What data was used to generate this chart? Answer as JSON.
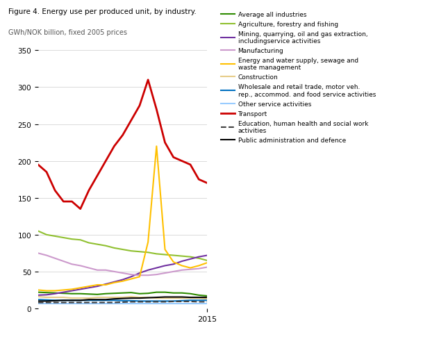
{
  "years": [
    1995,
    1996,
    1997,
    1998,
    1999,
    2000,
    2001,
    2002,
    2003,
    2004,
    2005,
    2006,
    2007,
    2008,
    2009,
    2010,
    2011,
    2012,
    2013,
    2014,
    2015
  ],
  "series": [
    {
      "name": "Average all industries",
      "color": "#2e8b00",
      "lw": 1.5,
      "ls": "-",
      "values": [
        22,
        21.5,
        21,
        20.5,
        20,
        20,
        19.5,
        19,
        20,
        20.5,
        21,
        21.5,
        20,
        20.5,
        22,
        22,
        21,
        21,
        20,
        18,
        17
      ]
    },
    {
      "name": "Agriculture, forestry and fishing",
      "color": "#90c030",
      "lw": 1.5,
      "ls": "-",
      "values": [
        105,
        100,
        98,
        96,
        94,
        93,
        89,
        87,
        85,
        82,
        80,
        78,
        77,
        76,
        74,
        73,
        72,
        71,
        70,
        68,
        65
      ]
    },
    {
      "name": "Mining, quarrying, oil and gas extraction,\nincludingservice activities",
      "color": "#7030a0",
      "lw": 1.5,
      "ls": "-",
      "values": [
        18,
        18.5,
        20,
        22,
        24,
        26,
        28,
        30,
        33,
        36,
        39,
        43,
        48,
        52,
        55,
        58,
        60,
        64,
        67,
        70,
        72
      ]
    },
    {
      "name": "Manufacturing",
      "color": "#cc99cc",
      "lw": 1.5,
      "ls": "-",
      "values": [
        75,
        72,
        68,
        64,
        60,
        58,
        55,
        52,
        52,
        50,
        48,
        46,
        45,
        45,
        46,
        48,
        50,
        52,
        53,
        54,
        56
      ]
    },
    {
      "name": "Energy and water supply, sewage and\nwaste management",
      "color": "#ffc000",
      "lw": 1.5,
      "ls": "-",
      "values": [
        25,
        24,
        24,
        25,
        26,
        28,
        30,
        32,
        32,
        35,
        37,
        40,
        43,
        90,
        220,
        80,
        63,
        58,
        55,
        58,
        62
      ]
    },
    {
      "name": "Construction",
      "color": "#e6cc88",
      "lw": 1.5,
      "ls": "-",
      "values": [
        16,
        15,
        15,
        15,
        14,
        14,
        14,
        15,
        15,
        15,
        15,
        16,
        15,
        15,
        14,
        14,
        14,
        14,
        14,
        14,
        13
      ]
    },
    {
      "name": "Wholesale and retail trade, motor veh.\nrep., accommod. and food service activities",
      "color": "#0070c0",
      "lw": 1.5,
      "ls": "-",
      "values": [
        12,
        11.5,
        11,
        11,
        11,
        11,
        11,
        11,
        11,
        11,
        10.5,
        10.5,
        10,
        10,
        10,
        10,
        10,
        10.5,
        11,
        11,
        11
      ]
    },
    {
      "name": "Other service activities",
      "color": "#99ccff",
      "lw": 1.5,
      "ls": "-",
      "values": [
        7,
        7,
        7,
        7,
        7,
        7,
        7,
        7,
        7,
        7,
        7,
        7,
        7,
        7,
        7,
        7,
        7,
        7,
        7,
        7,
        7
      ]
    },
    {
      "name": "Transport",
      "color": "#cc0000",
      "lw": 2.0,
      "ls": "-",
      "values": [
        195,
        185,
        160,
        145,
        145,
        135,
        160,
        180,
        200,
        220,
        235,
        255,
        275,
        310,
        270,
        225,
        205,
        200,
        195,
        175,
        170
      ]
    },
    {
      "name": "Education, human health and social work\nactivities",
      "color": "#404040",
      "lw": 1.5,
      "ls": "--",
      "values": [
        8,
        8,
        8,
        8,
        8,
        8,
        8,
        8,
        8,
        8,
        8.5,
        9,
        9,
        9,
        9,
        9,
        9.5,
        9.5,
        9.5,
        9,
        9
      ]
    },
    {
      "name": "Public administration and defence",
      "color": "#000000",
      "lw": 1.5,
      "ls": "-",
      "values": [
        10,
        10,
        10.5,
        11,
        11,
        11,
        12,
        12,
        12,
        13,
        13.5,
        14,
        14,
        14.5,
        15,
        15.5,
        15.5,
        15.5,
        15,
        15,
        15
      ]
    }
  ],
  "xlim": [
    1995,
    2015
  ],
  "ylim": [
    0,
    350
  ],
  "yticks": [
    0,
    50,
    100,
    150,
    200,
    250,
    300,
    350
  ],
  "x_single_tick": 2015,
  "title": "Figure 4. Energy use per produced unit, by industry.",
  "ylabel": "GWh/NOK billion, fixed 2005 prices",
  "bg": "#ffffff",
  "grid_color": "#cccccc"
}
